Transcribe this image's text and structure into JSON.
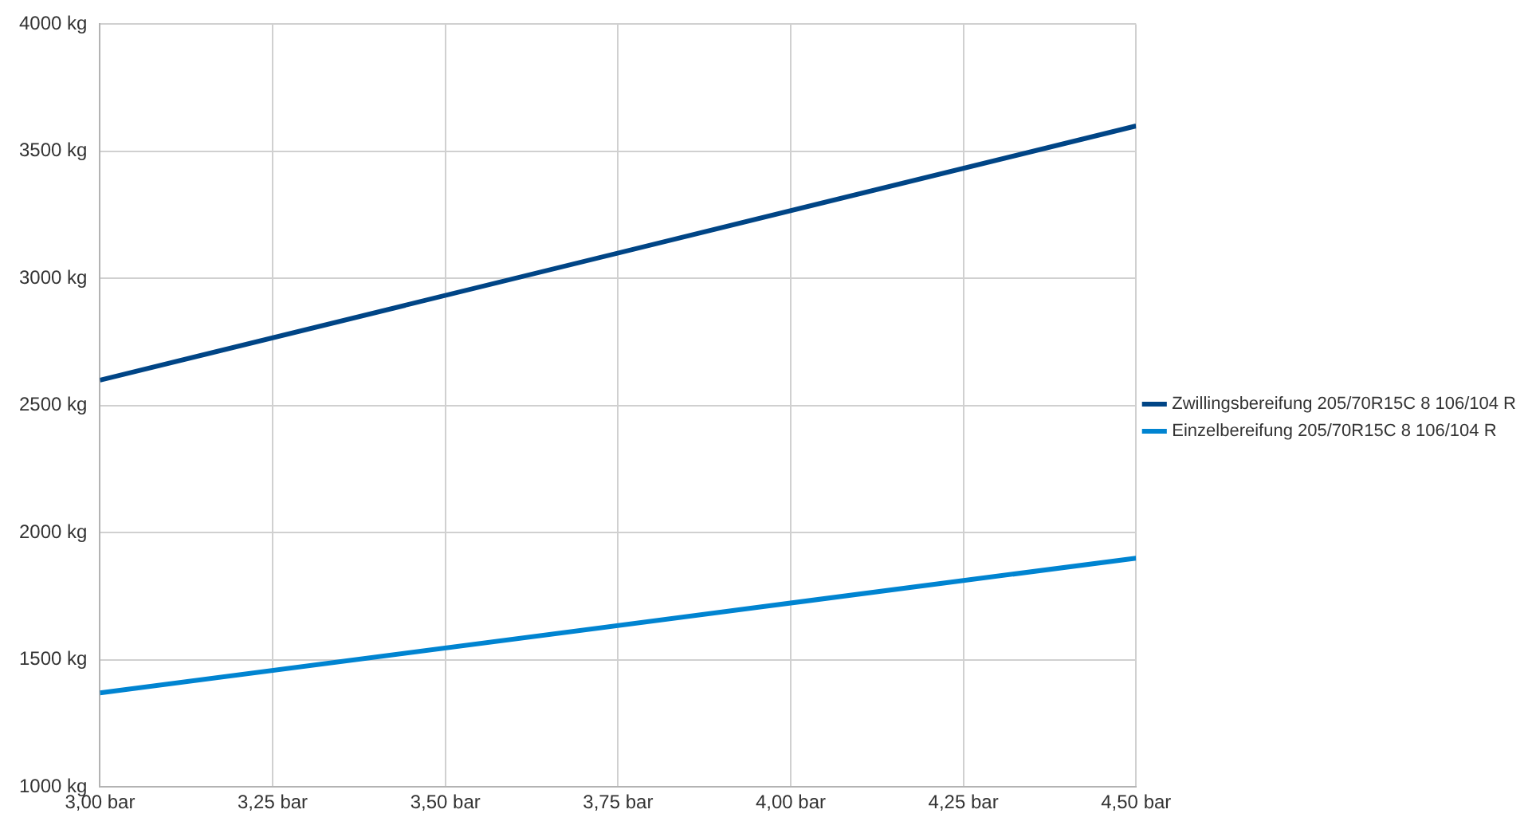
{
  "chart_data": {
    "type": "line",
    "x": [
      3.0,
      4.5
    ],
    "series": [
      {
        "name": "Zwillingsbereifung 205/70R15C 8 106/104 R",
        "color": "#004586",
        "values": [
          2600,
          3600
        ]
      },
      {
        "name": "Einzelbereifung 205/70R15C 8 106/104 R",
        "color": "#0084d1",
        "values": [
          1370,
          1900
        ]
      }
    ],
    "xlim": [
      3.0,
      4.5
    ],
    "xticks": [
      {
        "value": 3.0,
        "label": "3,00 bar"
      },
      {
        "value": 3.25,
        "label": "3,25 bar"
      },
      {
        "value": 3.5,
        "label": "3,50 bar"
      },
      {
        "value": 3.75,
        "label": "3,75 bar"
      },
      {
        "value": 4.0,
        "label": "4,00 bar"
      },
      {
        "value": 4.25,
        "label": "4,25 bar"
      },
      {
        "value": 4.5,
        "label": "4,50 bar"
      }
    ],
    "ylim": [
      1000,
      4000
    ],
    "yticks": [
      {
        "value": 1000,
        "label": "1000 kg"
      },
      {
        "value": 1500,
        "label": "1500 kg"
      },
      {
        "value": 2000,
        "label": "2000 kg"
      },
      {
        "value": 2500,
        "label": "2500 kg"
      },
      {
        "value": 3000,
        "label": "3000 kg"
      },
      {
        "value": 3500,
        "label": "3500 kg"
      },
      {
        "value": 4000,
        "label": "4000 kg"
      }
    ],
    "grid": true,
    "legend": "right",
    "marker": "none",
    "line_style": "solid"
  }
}
